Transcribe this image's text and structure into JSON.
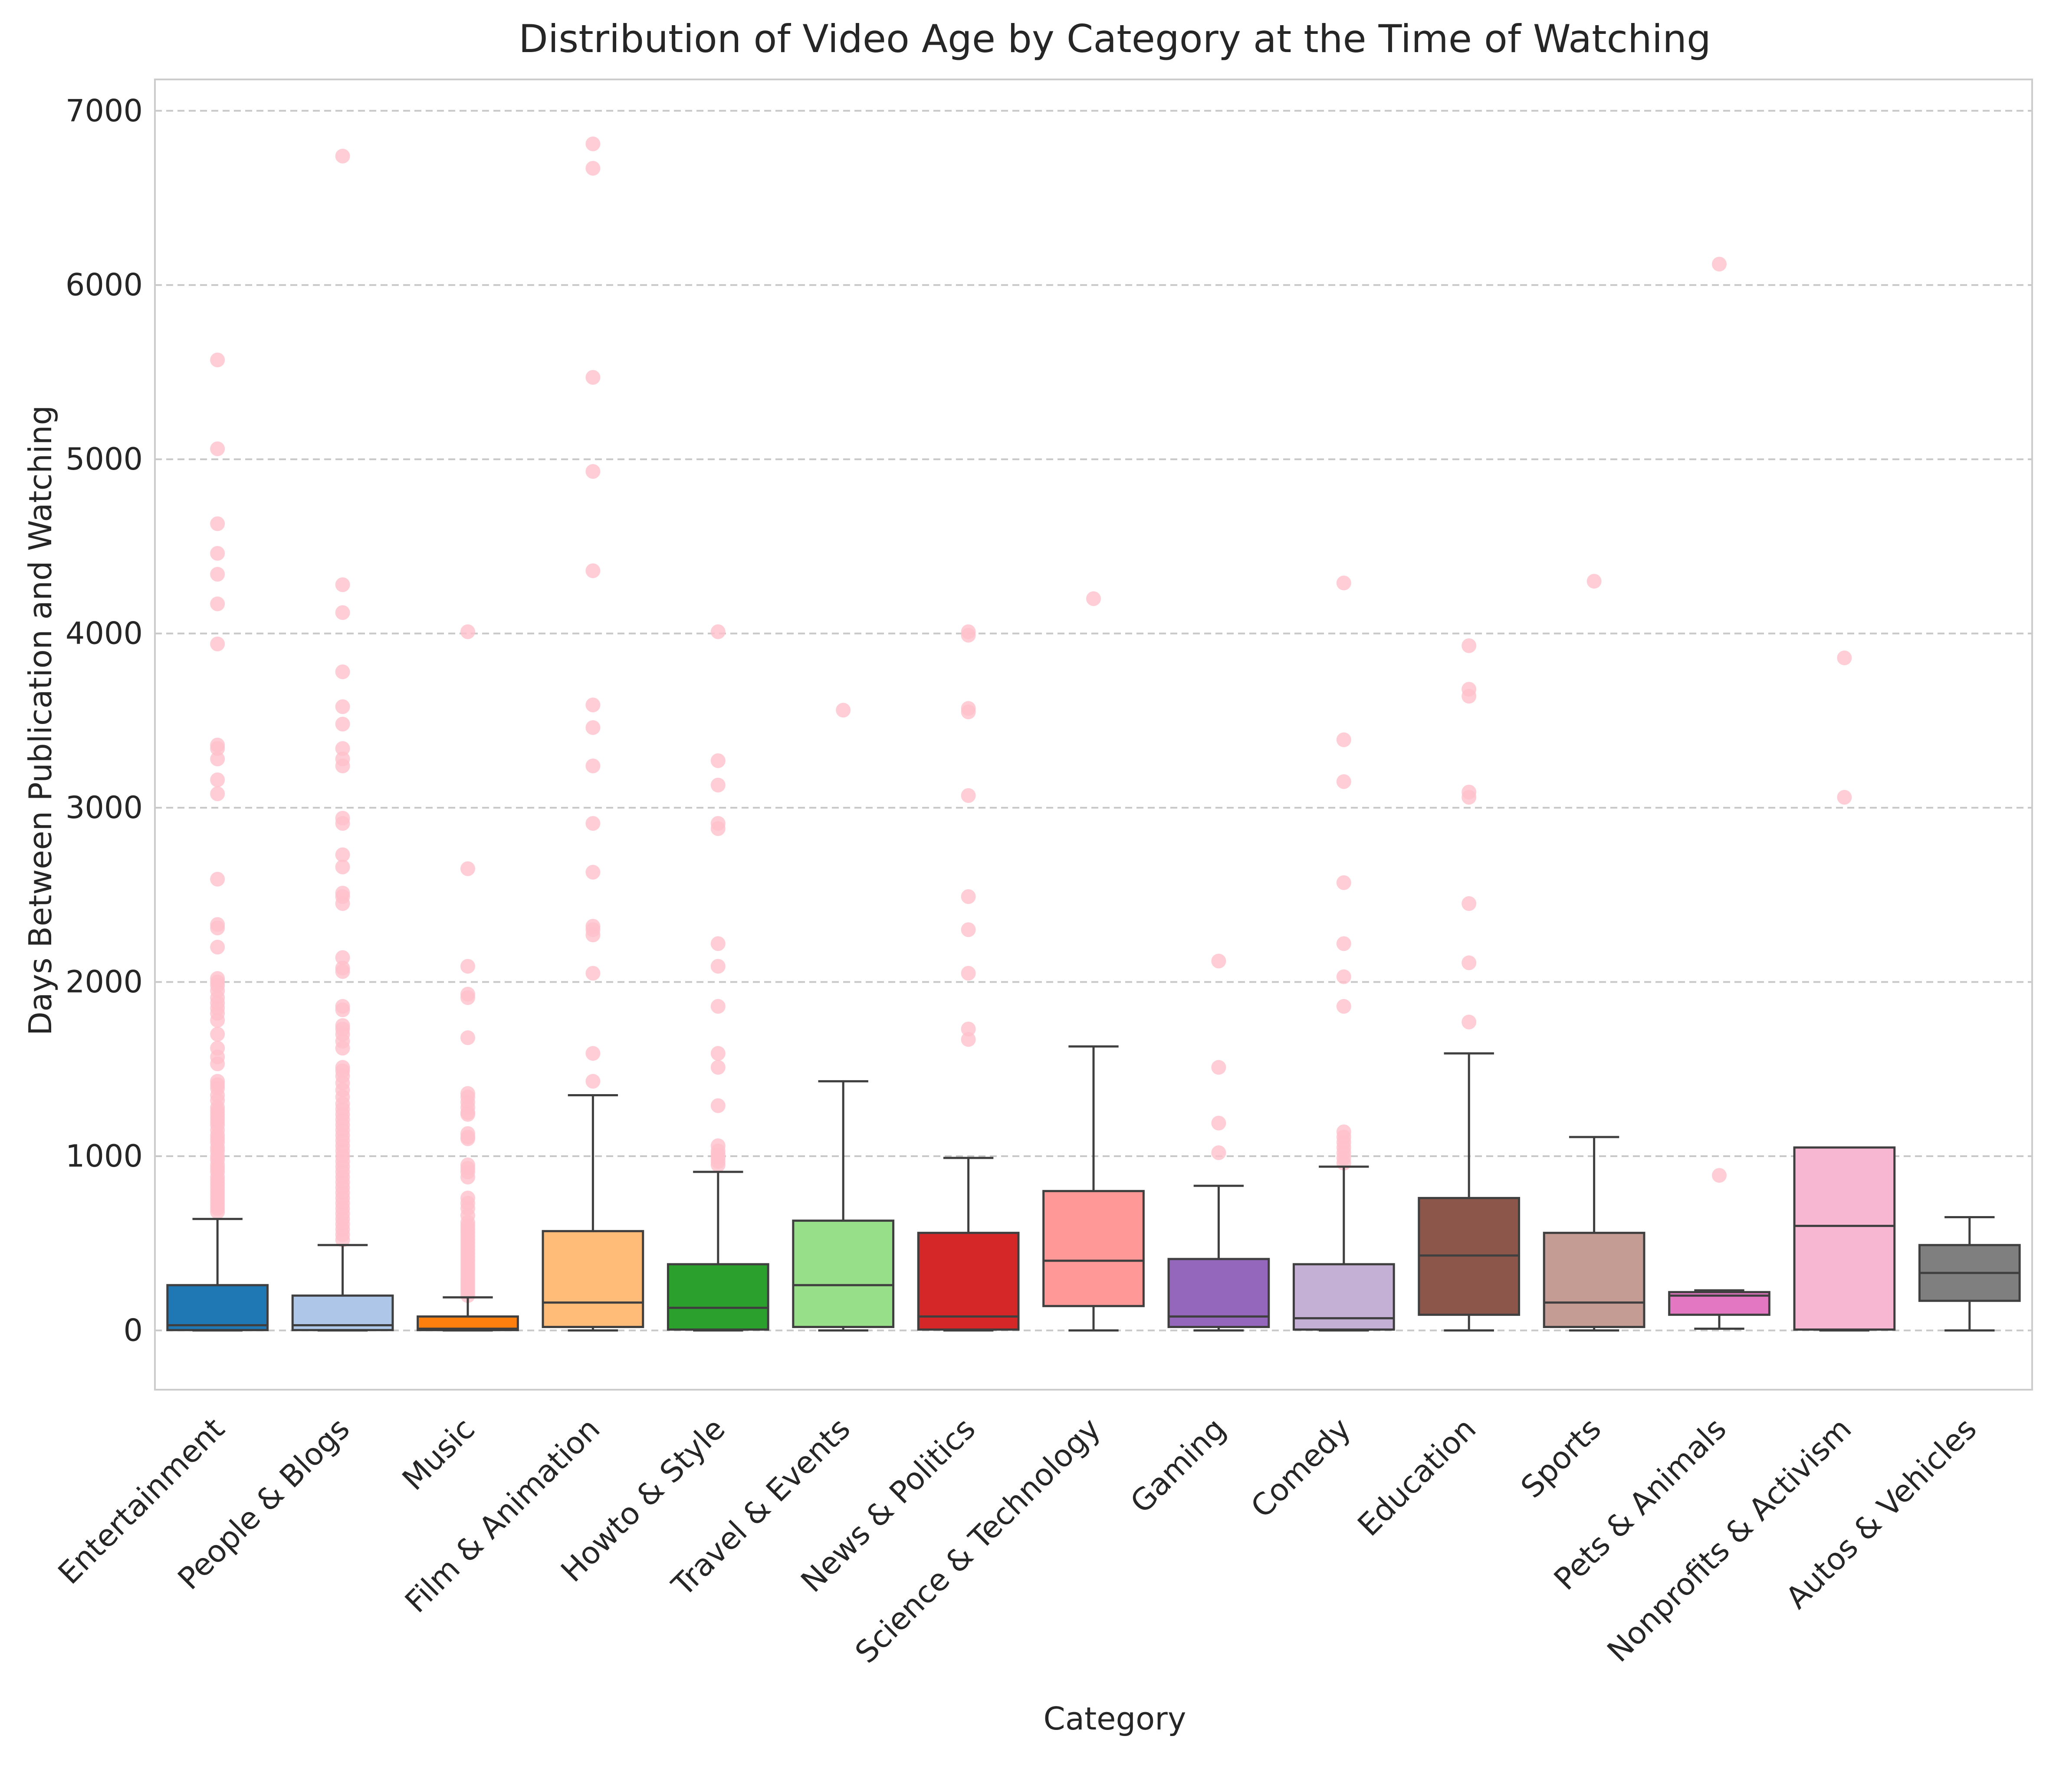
{
  "chart_data": {
    "type": "box",
    "title": "Distribution of Video Age by Category at the Time of Watching",
    "xlabel": "Category",
    "ylabel": "Days Between Publication and Watching",
    "ylim": [
      -340,
      7180
    ],
    "yticks": [
      0,
      1000,
      2000,
      3000,
      4000,
      5000,
      6000,
      7000
    ],
    "grid": "y dashed",
    "outlier_color": "#ffc0cb",
    "categories": [
      "Entertainment",
      "People & Blogs",
      "Music",
      "Film & Animation",
      "Howto & Style",
      "Travel & Events",
      "News & Politics",
      "Science & Technology",
      "Gaming",
      "Comedy",
      "Education",
      "Sports",
      "Pets & Animals",
      "Nonprofits & Activism",
      "Autos & Vehicles"
    ],
    "colors": [
      "#1f77b4",
      "#aec7e8",
      "#ff7f0e",
      "#ffbb78",
      "#2ca02c",
      "#98df8a",
      "#d62728",
      "#ff9896",
      "#9467bd",
      "#c5b0d5",
      "#8c564b",
      "#c49c94",
      "#e377c2",
      "#f7b6d2",
      "#7f7f7f"
    ],
    "boxes": [
      {
        "whislo": 0,
        "q1": 2,
        "med": 30,
        "q3": 260,
        "whishi": 640,
        "fliers": [
          5570,
          5060,
          4630,
          4460,
          4340,
          4170,
          3940,
          3360,
          3340,
          3280,
          3160,
          3080,
          2590,
          2330,
          2310,
          2200,
          2020,
          2000,
          1980,
          1950,
          1910,
          1880,
          1850,
          1820,
          1780,
          1700,
          1620,
          1570,
          1530,
          1430,
          1410,
          1390,
          1350,
          1320,
          1280,
          1260,
          1240,
          1220,
          1200,
          1180,
          1150,
          1120,
          1100,
          1080,
          1050,
          1030,
          1000,
          980,
          950,
          930,
          910,
          880,
          860,
          840,
          820,
          800,
          780,
          760,
          740,
          720,
          700,
          680
        ]
      },
      {
        "whislo": 0,
        "q1": 2,
        "med": 30,
        "q3": 200,
        "whishi": 490,
        "fliers": [
          6740,
          4280,
          4120,
          3780,
          3580,
          3480,
          3340,
          3280,
          3240,
          2940,
          2910,
          2730,
          2660,
          2510,
          2490,
          2450,
          2140,
          2080,
          2060,
          1860,
          1840,
          1750,
          1730,
          1700,
          1660,
          1620,
          1510,
          1490,
          1460,
          1420,
          1380,
          1340,
          1300,
          1270,
          1240,
          1210,
          1180,
          1150,
          1120,
          1090,
          1060,
          1030,
          1000,
          970,
          940,
          910,
          880,
          850,
          820,
          790,
          760,
          730,
          700,
          670,
          640,
          610,
          580,
          550,
          520
        ]
      },
      {
        "whislo": 0,
        "q1": 2,
        "med": 10,
        "q3": 80,
        "whishi": 190,
        "fliers": [
          4010,
          2650,
          2090,
          1930,
          1910,
          1680,
          1360,
          1340,
          1310,
          1280,
          1250,
          1240,
          1130,
          1110,
          1100,
          950,
          930,
          910,
          880,
          760,
          730,
          700,
          660,
          620,
          600,
          580,
          560,
          540,
          520,
          500,
          480,
          460,
          440,
          420,
          400,
          380,
          360,
          340,
          320,
          300,
          280,
          260,
          240,
          220,
          200
        ]
      },
      {
        "whislo": 0,
        "q1": 20,
        "med": 160,
        "q3": 570,
        "whishi": 1350,
        "fliers": [
          6810,
          6670,
          5470,
          4930,
          4360,
          3590,
          3460,
          3240,
          2910,
          2630,
          2320,
          2300,
          2270,
          2050,
          1590,
          1430
        ]
      },
      {
        "whislo": 0,
        "q1": 5,
        "med": 130,
        "q3": 380,
        "whishi": 910,
        "fliers": [
          4010,
          3270,
          3130,
          2910,
          2880,
          2220,
          2090,
          1860,
          1590,
          1510,
          1290,
          1060,
          1030,
          1010,
          990,
          970,
          950
        ]
      },
      {
        "whislo": 0,
        "q1": 20,
        "med": 260,
        "q3": 630,
        "whishi": 1430,
        "fliers": [
          3560
        ]
      },
      {
        "whislo": 0,
        "q1": 5,
        "med": 80,
        "q3": 560,
        "whishi": 990,
        "fliers": [
          4010,
          3990,
          3570,
          3550,
          3070,
          2490,
          2300,
          2050,
          1730,
          1670
        ]
      },
      {
        "whislo": 0,
        "q1": 140,
        "med": 400,
        "q3": 800,
        "whishi": 1630,
        "fliers": [
          4200
        ]
      },
      {
        "whislo": 0,
        "q1": 20,
        "med": 80,
        "q3": 410,
        "whishi": 830,
        "fliers": [
          2120,
          1510,
          1190,
          1020
        ]
      },
      {
        "whislo": 0,
        "q1": 5,
        "med": 70,
        "q3": 380,
        "whishi": 940,
        "fliers": [
          4290,
          3390,
          3150,
          2570,
          2220,
          2030,
          1860,
          1140,
          1110,
          1080,
          1050,
          1020,
          990,
          960
        ]
      },
      {
        "whislo": 0,
        "q1": 90,
        "med": 430,
        "q3": 760,
        "whishi": 1590,
        "fliers": [
          3930,
          3680,
          3640,
          3090,
          3060,
          2450,
          2110,
          1770
        ]
      },
      {
        "whislo": 0,
        "q1": 20,
        "med": 160,
        "q3": 560,
        "whishi": 1110,
        "fliers": [
          4300
        ]
      },
      {
        "whislo": 10,
        "q1": 90,
        "med": 200,
        "q3": 220,
        "whishi": 230,
        "fliers": [
          6120,
          890
        ]
      },
      {
        "whislo": 0,
        "q1": 5,
        "med": 600,
        "q3": 1050,
        "whishi": 1050,
        "fliers": [
          3860,
          3060
        ]
      },
      {
        "whislo": 0,
        "q1": 170,
        "med": 330,
        "q3": 490,
        "whishi": 650,
        "fliers": []
      }
    ]
  }
}
